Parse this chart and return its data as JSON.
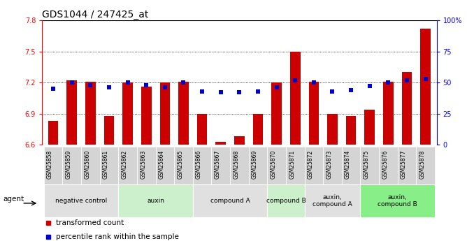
{
  "title": "GDS1044 / 247425_at",
  "samples": [
    "GSM25858",
    "GSM25859",
    "GSM25860",
    "GSM25861",
    "GSM25862",
    "GSM25863",
    "GSM25864",
    "GSM25865",
    "GSM25866",
    "GSM25867",
    "GSM25868",
    "GSM25869",
    "GSM25870",
    "GSM25871",
    "GSM25872",
    "GSM25873",
    "GSM25874",
    "GSM25875",
    "GSM25876",
    "GSM25877",
    "GSM25878"
  ],
  "bar_values": [
    6.83,
    7.22,
    7.21,
    6.88,
    7.2,
    7.16,
    7.2,
    7.21,
    6.9,
    6.63,
    6.68,
    6.9,
    7.2,
    7.5,
    7.21,
    6.9,
    6.88,
    6.94,
    7.21,
    7.3,
    7.72
  ],
  "percentile_values": [
    45,
    50,
    48,
    46,
    50,
    48,
    46,
    50,
    43,
    42,
    42,
    43,
    46,
    52,
    50,
    43,
    44,
    47,
    50,
    52,
    53
  ],
  "ylim_left": [
    6.6,
    7.8
  ],
  "ylim_right": [
    0,
    100
  ],
  "yticks_left": [
    6.6,
    6.9,
    7.2,
    7.5,
    7.8
  ],
  "yticks_right": [
    0,
    25,
    50,
    75,
    100
  ],
  "ytick_labels_right": [
    "0",
    "25",
    "50",
    "75",
    "100%"
  ],
  "bar_color": "#cc0000",
  "dot_color": "#0000cc",
  "grid_values": [
    6.9,
    7.2,
    7.5
  ],
  "groups": [
    {
      "label": "negative control",
      "start": 0,
      "end": 3,
      "color": "#e0e0e0"
    },
    {
      "label": "auxin",
      "start": 4,
      "end": 7,
      "color": "#ccf0cc"
    },
    {
      "label": "compound A",
      "start": 8,
      "end": 11,
      "color": "#e0e0e0"
    },
    {
      "label": "compound B",
      "start": 12,
      "end": 13,
      "color": "#ccf0cc"
    },
    {
      "label": "auxin,\ncompound A",
      "start": 14,
      "end": 16,
      "color": "#e0e0e0"
    },
    {
      "label": "auxin,\ncompound B",
      "start": 17,
      "end": 20,
      "color": "#88ee88"
    }
  ],
  "legend_items": [
    {
      "label": "transformed count",
      "color": "#cc0000"
    },
    {
      "label": "percentile rank within the sample",
      "color": "#0000cc"
    }
  ],
  "agent_label": "agent",
  "title_fontsize": 10,
  "tick_fontsize": 7,
  "bar_width": 0.55,
  "ybase": 6.6
}
